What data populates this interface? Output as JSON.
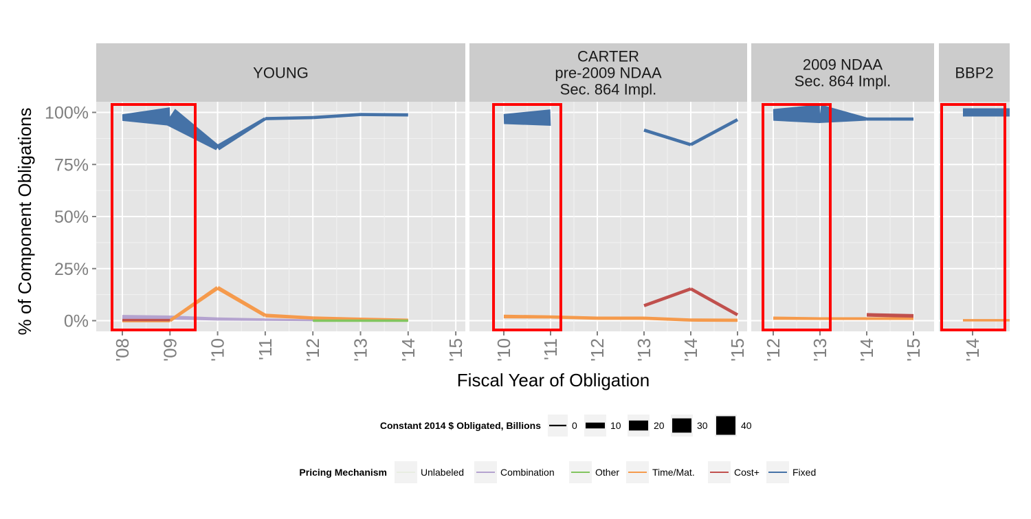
{
  "chart_data": {
    "type": "line",
    "ylabel": "% of Component Obligations",
    "xlabel": "Fiscal Year of Obligation",
    "y_ticks": [
      "0%",
      "25%",
      "50%",
      "75%",
      "100%"
    ],
    "y_tick_values": [
      0,
      25,
      50,
      75,
      100
    ],
    "grid": true,
    "legend_placement": "bottom",
    "panels": [
      {
        "label": "YOUNG",
        "x_ticks": [
          "'08",
          "'09",
          "'10",
          "'11",
          "'12",
          "'13",
          "'14",
          "'15"
        ],
        "highlight_years": [
          "'08",
          "'09"
        ],
        "series": [
          {
            "name": "Fixed",
            "points": [
              [
                "'08",
                97.5,
                12
              ],
              [
                "'09",
                98,
                40
              ],
              [
                "'10",
                83,
                10
              ],
              [
                "'11",
                97,
                4
              ],
              [
                "'12",
                97.5,
                4
              ],
              [
                "'13",
                99,
                4
              ],
              [
                "'14",
                98.8,
                4
              ]
            ]
          },
          {
            "name": "Combination",
            "points": [
              [
                "'08",
                1.8,
                6
              ],
              [
                "'09",
                1.5,
                6
              ],
              [
                "'10",
                0.8,
                4
              ],
              [
                "'11",
                0.5,
                2
              ],
              [
                "'12",
                0.2,
                1
              ],
              [
                "'13",
                0.1,
                1
              ],
              [
                "'14",
                0,
                1
              ]
            ]
          },
          {
            "name": "Time/Mat.",
            "points": [
              [
                "'08",
                0,
                4
              ],
              [
                "'09",
                0,
                4
              ],
              [
                "'10",
                15.8,
                6
              ],
              [
                "'11",
                2.5,
                5
              ],
              [
                "'12",
                1.3,
                4
              ],
              [
                "'13",
                0.8,
                3
              ],
              [
                "'14",
                0.3,
                3
              ]
            ]
          },
          {
            "name": "Cost+",
            "points": [
              [
                "'08",
                0.3,
                2
              ],
              [
                "'09",
                0.3,
                2
              ]
            ]
          },
          {
            "name": "Other",
            "points": [
              [
                "'12",
                0,
                2
              ],
              [
                "'13",
                0,
                2
              ],
              [
                "'14",
                0,
                2
              ]
            ]
          }
        ]
      },
      {
        "label": "CARTER\npre-2009 NDAA\nSec. 864 Impl.",
        "x_ticks": [
          "'10",
          "'11",
          "'12",
          "'13",
          "'14",
          "'15"
        ],
        "highlight_years": [
          "'10",
          "'11"
        ],
        "series": [
          {
            "name": "Fixed",
            "points": [
              [
                "'10",
                96.8,
                20
              ],
              [
                "'11",
                97.5,
                35
              ]
            ]
          },
          {
            "name": "Fixed",
            "points": [
              [
                "'13",
                91.5,
                4
              ],
              [
                "'14",
                84.5,
                4
              ],
              [
                "'15",
                96.5,
                4
              ]
            ]
          },
          {
            "name": "Time/Mat.",
            "points": [
              [
                "'10",
                2,
                5
              ],
              [
                "'11",
                1.8,
                4
              ],
              [
                "'12",
                1.2,
                4
              ],
              [
                "'13",
                1.2,
                4
              ],
              [
                "'14",
                0.3,
                4
              ],
              [
                "'15",
                0.2,
                4
              ]
            ]
          },
          {
            "name": "Cost+",
            "points": [
              [
                "'13",
                7.2,
                4
              ],
              [
                "'14",
                15.3,
                4
              ],
              [
                "'15",
                2.8,
                4
              ]
            ]
          }
        ]
      },
      {
        "label": "2009 NDAA\nSec. 864 Impl.",
        "x_ticks": [
          "'12",
          "'13",
          "'14",
          "'15"
        ],
        "highlight_years": [
          "'12",
          "'13"
        ],
        "series": [
          {
            "name": "Fixed",
            "points": [
              [
                "'12",
                98.8,
                24
              ],
              [
                "'13",
                99.3,
                40
              ],
              [
                "'14",
                96.8,
                4
              ],
              [
                "'15",
                96.8,
                4
              ]
            ]
          },
          {
            "name": "Time/Mat.",
            "points": [
              [
                "'12",
                1.2,
                4
              ],
              [
                "'13",
                1,
                3
              ],
              [
                "'14",
                1,
                3
              ],
              [
                "'15",
                1,
                3
              ]
            ]
          },
          {
            "name": "Cost+",
            "points": [
              [
                "'14",
                2.8,
                5
              ],
              [
                "'15",
                2.3,
                5
              ]
            ]
          }
        ]
      },
      {
        "label": "BBP2",
        "x_ticks": [
          "'14"
        ],
        "highlight_years": [
          "'14"
        ],
        "series": [
          {
            "name": "Fixed",
            "points": [
              [
                "'14",
                100,
                16
              ]
            ]
          },
          {
            "name": "Time/Mat.",
            "points": [
              [
                "'14",
                0.2,
                2
              ]
            ]
          }
        ]
      }
    ],
    "size_legend": {
      "title": "Constant 2014 $ Obligated, Billions",
      "values": [
        0,
        10,
        20,
        30,
        40
      ]
    },
    "color_legend": {
      "title": "Pricing Mechanism",
      "entries": [
        {
          "name": "Unlabeled",
          "color": "#e8ede2"
        },
        {
          "name": "Combination",
          "color": "#b4a3cf"
        },
        {
          "name": "Other",
          "color": "#82c55e"
        },
        {
          "name": "Time/Mat.",
          "color": "#f59a4c"
        },
        {
          "name": "Cost+",
          "color": "#c0504d"
        },
        {
          "name": "Fixed",
          "color": "#4572a7"
        }
      ]
    },
    "colors": {
      "panel_bg": "#e5e5e5",
      "strip_bg": "#cccccc",
      "highlight": "#ff0000"
    }
  }
}
